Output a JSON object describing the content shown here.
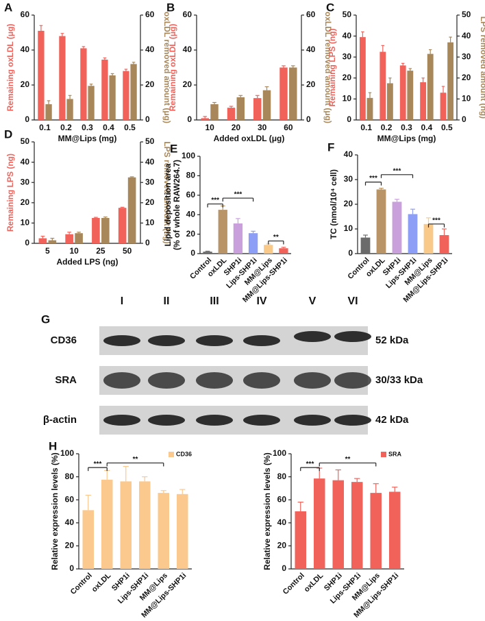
{
  "chart_data": [
    {
      "panel": "A",
      "type": "bar",
      "categories": [
        "0.1",
        "0.2",
        "0.3",
        "0.4",
        "0.5"
      ],
      "xlabel": "MM@Lips (mg)",
      "ylabel": "Remaining oxLDL (μg)",
      "y2label": "oxLDL removed amount (μg)",
      "ylim": [
        0,
        60
      ],
      "yticks": [
        0,
        20,
        40,
        60
      ],
      "y2lim": [
        0,
        60
      ],
      "y2ticks": [
        0,
        20,
        40,
        60
      ],
      "series": [
        {
          "color": "#f0625a",
          "values": [
            51,
            48,
            41,
            34.5,
            28
          ],
          "errors": [
            3,
            1.5,
            1,
            1,
            1
          ]
        },
        {
          "color": "#a8875a",
          "axis": "y2",
          "values": [
            9,
            12,
            19.5,
            25.5,
            32
          ],
          "errors": [
            2,
            2,
            1,
            1,
            1
          ]
        }
      ]
    },
    {
      "panel": "B",
      "type": "bar",
      "categories": [
        "10",
        "20",
        "30",
        "60"
      ],
      "xlabel": "Added oxLDL (μg)",
      "ylabel": "Remaining oxLDL (μg)",
      "y2label": "oxLDL removed amount (μg)",
      "ylim": [
        0,
        60
      ],
      "yticks": [
        0,
        20,
        40,
        60
      ],
      "y2lim": [
        0,
        60
      ],
      "y2ticks": [
        0,
        20,
        40,
        60
      ],
      "series": [
        {
          "color": "#f0625a",
          "values": [
            1,
            7,
            12.5,
            30
          ],
          "errors": [
            1,
            0.8,
            1.5,
            1
          ]
        },
        {
          "color": "#a8875a",
          "axis": "y2",
          "values": [
            9,
            13,
            17,
            30
          ],
          "errors": [
            1,
            1,
            2,
            1
          ]
        }
      ]
    },
    {
      "panel": "C",
      "type": "bar",
      "categories": [
        "0.1",
        "0.2",
        "0.3",
        "0.4",
        "0.5"
      ],
      "xlabel": "MM@Lips (mg)",
      "ylabel": "Remaining LPS (ng)",
      "y2label": "LPS removed amount (ng)",
      "ylim": [
        0,
        50
      ],
      "yticks": [
        0,
        10,
        20,
        30,
        40,
        50
      ],
      "y2lim": [
        0,
        50
      ],
      "y2ticks": [
        0,
        10,
        20,
        30,
        40,
        50
      ],
      "series": [
        {
          "color": "#f0625a",
          "values": [
            39.5,
            32.5,
            26,
            18,
            13
          ],
          "errors": [
            2.5,
            3,
            1,
            2,
            3
          ]
        },
        {
          "color": "#a8875a",
          "axis": "y2",
          "values": [
            10.5,
            17.5,
            23.5,
            31.5,
            37
          ],
          "errors": [
            2.5,
            2.5,
            1,
            2,
            2.5
          ]
        }
      ]
    },
    {
      "panel": "D",
      "type": "bar",
      "categories": [
        "5",
        "10",
        "25",
        "50"
      ],
      "xlabel": "Added LPS (ng)",
      "ylabel": "Remaining LPS (ng)",
      "y2label": "LPS removed amount (ng)",
      "ylim": [
        0,
        50
      ],
      "yticks": [
        0,
        10,
        20,
        30,
        40,
        50
      ],
      "y2lim": [
        0,
        50
      ],
      "y2ticks": [
        0,
        10,
        20,
        30,
        40,
        50
      ],
      "series": [
        {
          "color": "#f0625a",
          "values": [
            2.5,
            4.5,
            12.5,
            17.5
          ],
          "errors": [
            1,
            1,
            0.3,
            0.3
          ]
        },
        {
          "color": "#a8875a",
          "axis": "y2",
          "values": [
            1.5,
            5,
            12.5,
            32.5
          ],
          "errors": [
            1,
            0.5,
            0.5,
            0.3
          ]
        }
      ]
    },
    {
      "panel": "E",
      "type": "bar",
      "categories": [
        "Control",
        "oxLDL",
        "SHP1i",
        "Lips-SHP1i",
        "MM@Lips",
        "MM@Lips-SHP1i"
      ],
      "ylabel": [
        "Lipid deposition area",
        "(% of whole RAW264.7)"
      ],
      "ylim": [
        0,
        100
      ],
      "yticks": [
        0,
        20,
        40,
        60,
        80,
        100
      ],
      "series": [
        {
          "colors": [
            "#6b6b6b",
            "#b89466",
            "#c9a0dc",
            "#8c9ef5",
            "#f9c98a",
            "#f0625a"
          ],
          "values": [
            2,
            45,
            31,
            21,
            9,
            5.5
          ],
          "errors": [
            0.5,
            4,
            5,
            2,
            1,
            1
          ]
        }
      ],
      "annotations": [
        "***",
        "***",
        "**"
      ]
    },
    {
      "panel": "F",
      "type": "bar",
      "categories": [
        "Control",
        "oxLDL",
        "SHP1i",
        "Lips-SHP1i",
        "MM@Lips",
        "MM@Lips-SHP1i"
      ],
      "ylabel": "TC (nmol/10⁴ cell)",
      "ylim": [
        0,
        40
      ],
      "yticks": [
        0,
        10,
        20,
        30,
        40
      ],
      "series": [
        {
          "colors": [
            "#6b6b6b",
            "#b89466",
            "#c9a0dc",
            "#8c9ef5",
            "#f9c98a",
            "#f0625a"
          ],
          "values": [
            6.5,
            26,
            21,
            16,
            12,
            7.5
          ],
          "errors": [
            1,
            0.5,
            1,
            2,
            2.5,
            2.5
          ]
        }
      ],
      "annotations": [
        "***",
        "***",
        "***"
      ]
    },
    {
      "panel": "H",
      "type": "bar",
      "categories": [
        "Control",
        "oxLDL",
        "SHP1i",
        "Lips-SHP1i",
        "MM@Lips",
        "MM@Lips-SHP1i"
      ],
      "ylabel": "Relative expression levels (%)",
      "ylim": [
        0,
        100
      ],
      "yticks": [
        0,
        20,
        40,
        60,
        80,
        100
      ],
      "series": [
        {
          "name": "CD36",
          "color": "#fbc88e",
          "values": [
            51,
            77.5,
            76,
            76,
            66,
            65
          ],
          "errors": [
            13,
            8,
            13,
            4,
            2,
            4
          ]
        }
      ],
      "annotations": [
        "***",
        "**"
      ]
    },
    {
      "type": "bar",
      "categories": [
        "Control",
        "oxLDL",
        "SHP1i",
        "Lips-SHP1i",
        "MM@Lips",
        "MM@Lips-SHP1i"
      ],
      "ylabel": "Relative expression levels (%)",
      "ylim": [
        0,
        100
      ],
      "yticks": [
        0,
        20,
        40,
        60,
        80,
        100
      ],
      "series": [
        {
          "name": "SRA",
          "color": "#f0625a",
          "values": [
            50,
            78.5,
            77,
            75.5,
            66,
            67
          ],
          "errors": [
            8,
            9,
            9,
            3,
            8,
            4
          ]
        }
      ],
      "annotations": [
        "***",
        "**"
      ]
    }
  ],
  "blot": {
    "panel": "G",
    "lanes": [
      "I",
      "II",
      "III",
      "IV",
      "V",
      "VI"
    ],
    "rows": [
      {
        "label": "CD36",
        "size": "52 kDa"
      },
      {
        "label": "SRA",
        "size": "30/33 kDa"
      },
      {
        "label": "β-actin",
        "size": "42 kDa"
      }
    ]
  }
}
